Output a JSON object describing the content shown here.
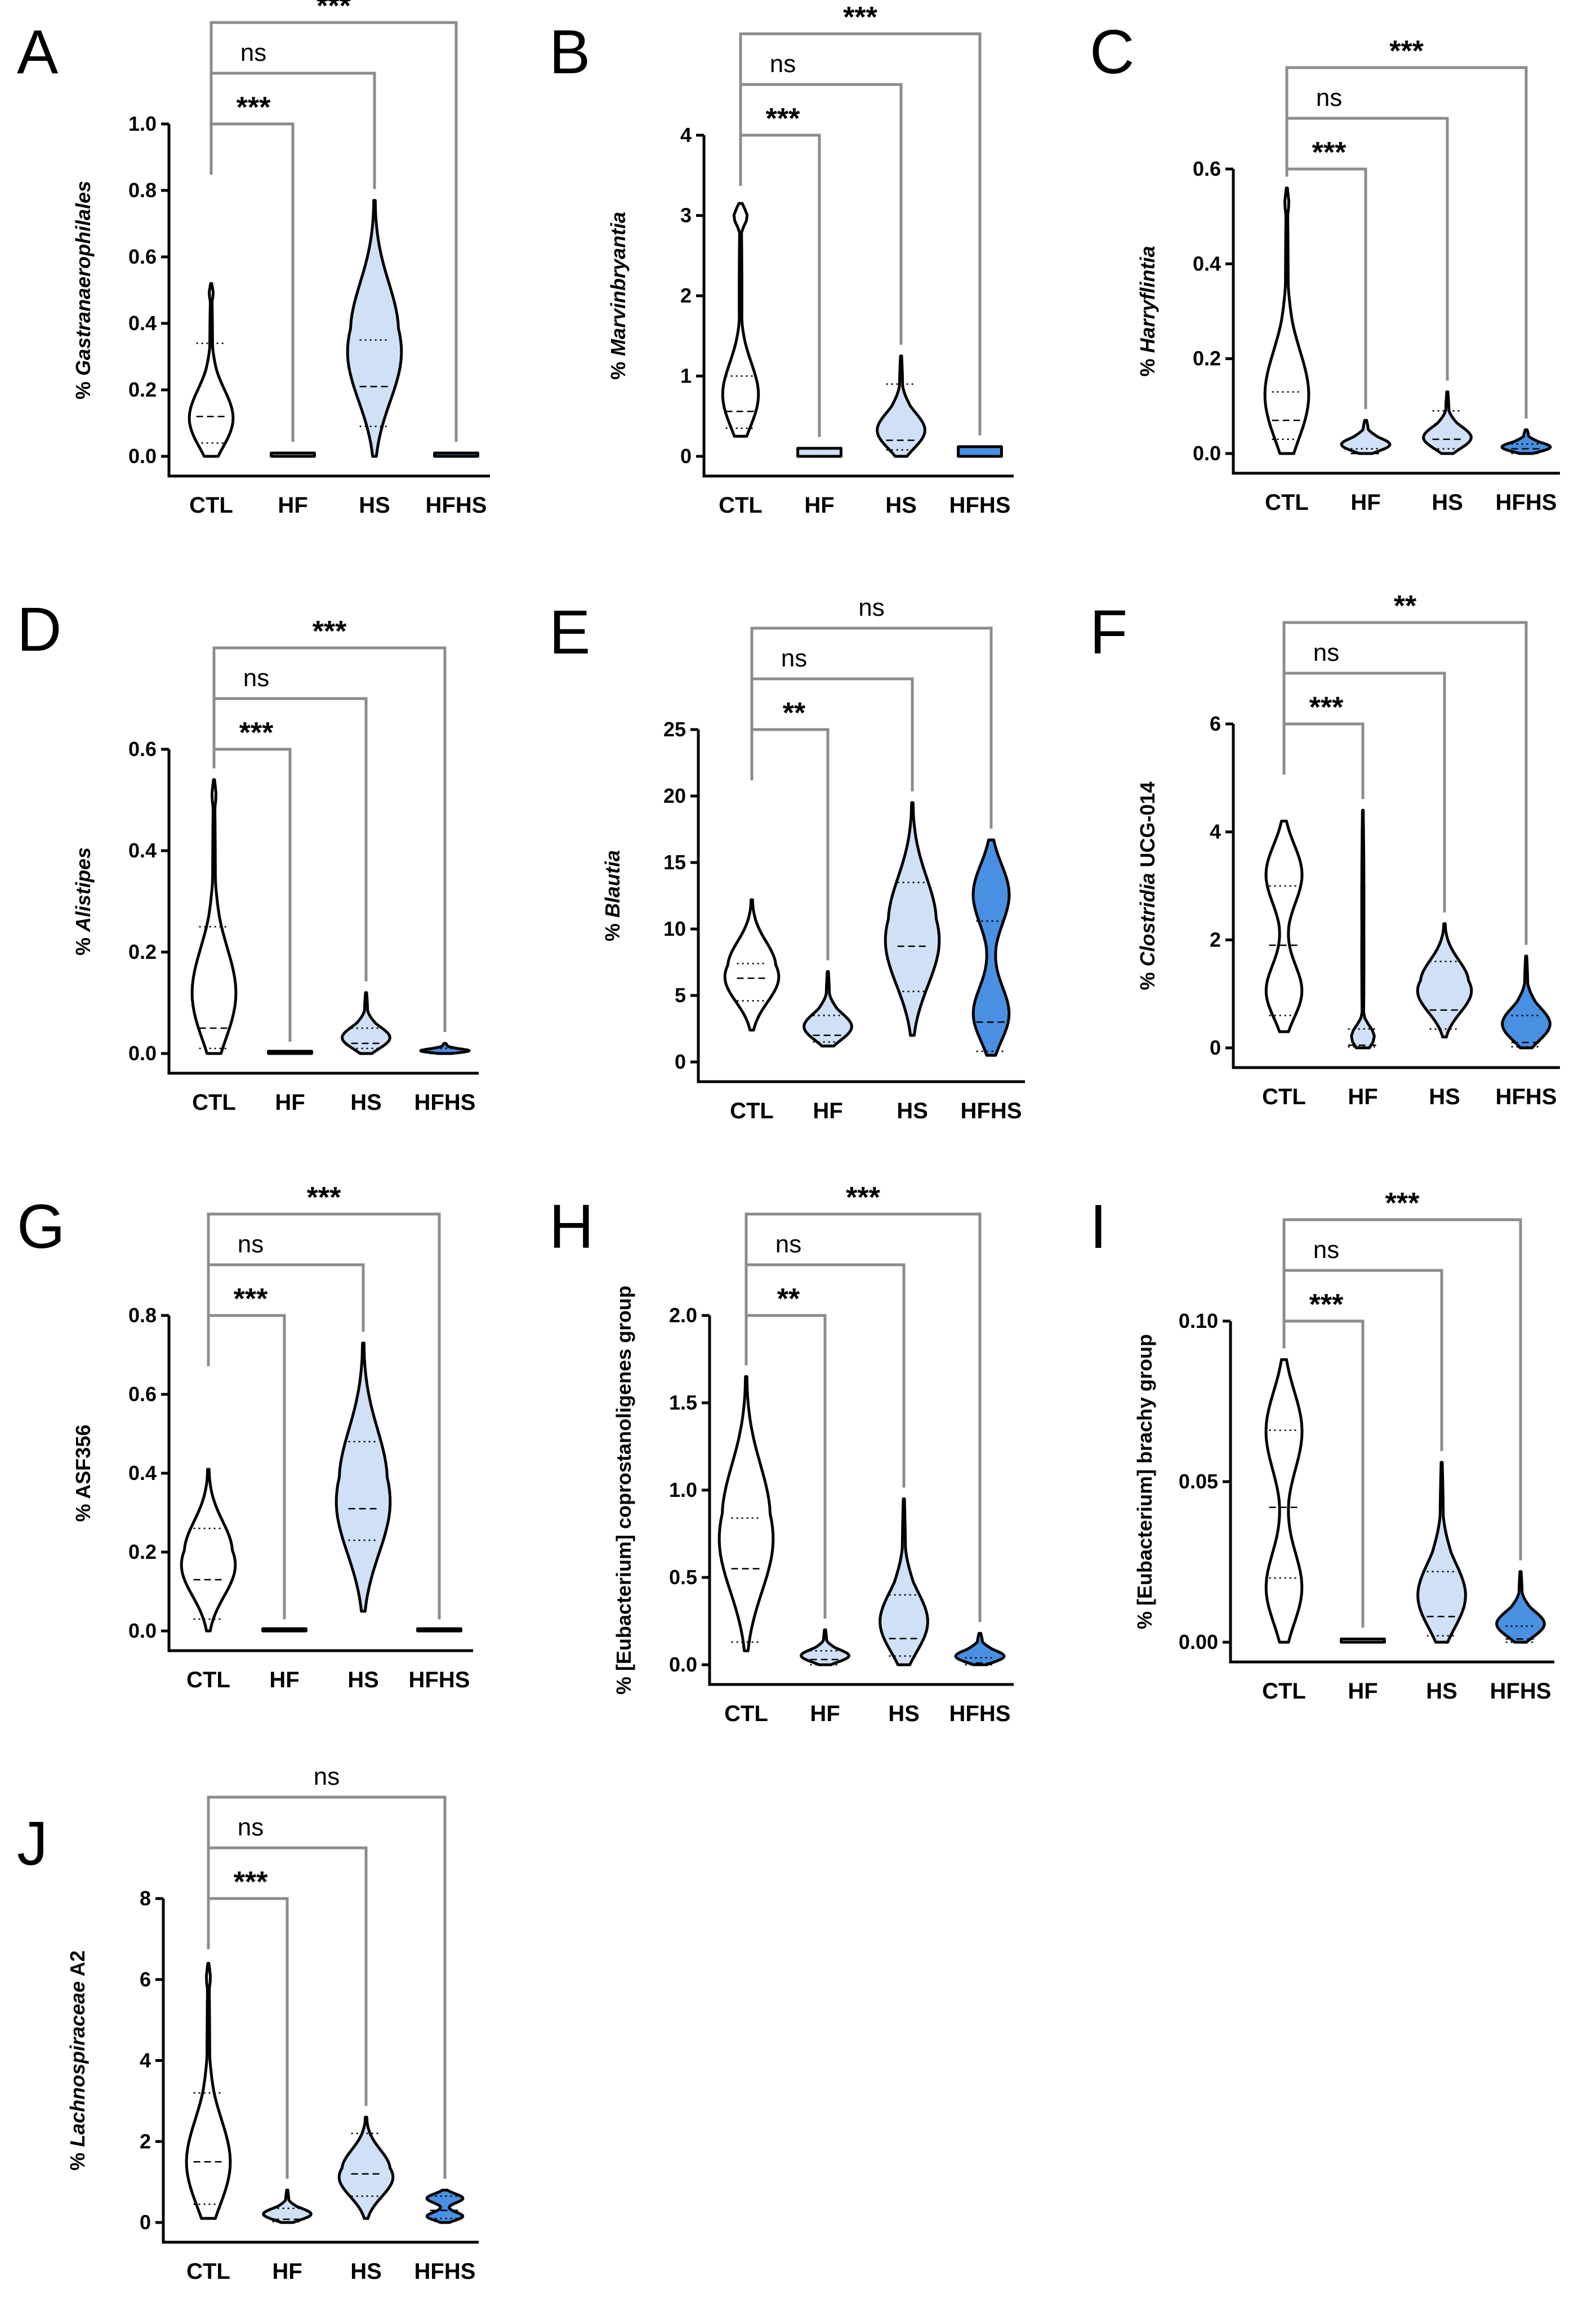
{
  "figure": {
    "groups": [
      "CTL",
      "HF",
      "HS",
      "HFHS"
    ],
    "group_colors": {
      "CTL": "#ffffff",
      "HF": "#cfe0f7",
      "HS": "#cfe0f7",
      "HFHS": "#4a90e2"
    }
  },
  "chart_data": [
    {
      "type": "violin",
      "panel": "A",
      "title": "",
      "ylabel_prefix": "% ",
      "ylabel_italic": "Gastranaerophilales",
      "ylabel_suffix": "",
      "ylim": [
        0,
        1.0
      ],
      "ticks": [
        "0.0",
        "0.2",
        "0.4",
        "0.6",
        "0.8",
        "1.0"
      ],
      "categories": [
        "CTL",
        "HF",
        "HS",
        "HFHS"
      ],
      "series": [
        {
          "group": "CTL",
          "min": 0.0,
          "max": 0.52,
          "q1": 0.04,
          "median": 0.12,
          "q3": 0.34,
          "shape": "wide-bottom"
        },
        {
          "group": "HF",
          "min": 0.0,
          "max": 0.01,
          "q1": 0.0,
          "median": 0.0,
          "q3": 0.0,
          "shape": "flat"
        },
        {
          "group": "HS",
          "min": 0.0,
          "max": 0.77,
          "q1": 0.09,
          "median": 0.21,
          "q3": 0.35,
          "shape": "mid-bulge"
        },
        {
          "group": "HFHS",
          "min": 0.0,
          "max": 0.01,
          "q1": 0.0,
          "median": 0.0,
          "q3": 0.0,
          "shape": "flat"
        }
      ],
      "comparisons": [
        {
          "pair": [
            "CTL",
            "HF"
          ],
          "label": "***"
        },
        {
          "pair": [
            "CTL",
            "HS"
          ],
          "label": "ns"
        },
        {
          "pair": [
            "CTL",
            "HFHS"
          ],
          "label": "***"
        }
      ]
    },
    {
      "type": "violin",
      "panel": "B",
      "title": "",
      "ylabel_prefix": "% ",
      "ylabel_italic": "Marvinbryantia",
      "ylabel_suffix": "",
      "ylim": [
        0,
        4
      ],
      "ticks": [
        "0",
        "1",
        "2",
        "3",
        "4"
      ],
      "categories": [
        "CTL",
        "HF",
        "HS",
        "HFHS"
      ],
      "series": [
        {
          "group": "CTL",
          "min": 0.25,
          "max": 3.15,
          "q1": 0.35,
          "median": 0.56,
          "q3": 1.0,
          "shape": "top-spike"
        },
        {
          "group": "HF",
          "min": 0.0,
          "max": 0.1,
          "q1": 0.02,
          "median": 0.05,
          "q3": 0.08,
          "shape": "flat"
        },
        {
          "group": "HS",
          "min": 0.0,
          "max": 1.25,
          "q1": 0.08,
          "median": 0.2,
          "q3": 0.9,
          "shape": "bottom-bulge"
        },
        {
          "group": "HFHS",
          "min": 0.0,
          "max": 0.12,
          "q1": 0.01,
          "median": 0.04,
          "q3": 0.08,
          "shape": "flat"
        }
      ],
      "comparisons": [
        {
          "pair": [
            "CTL",
            "HF"
          ],
          "label": "***"
        },
        {
          "pair": [
            "CTL",
            "HS"
          ],
          "label": "ns"
        },
        {
          "pair": [
            "CTL",
            "HFHS"
          ],
          "label": "***"
        }
      ]
    },
    {
      "type": "violin",
      "panel": "C",
      "title": "",
      "ylabel_prefix": "% ",
      "ylabel_italic": "Harryflintia",
      "ylabel_suffix": "",
      "ylim": [
        0,
        0.6
      ],
      "ticks": [
        "0.0",
        "0.2",
        "0.4",
        "0.6"
      ],
      "categories": [
        "CTL",
        "HF",
        "HS",
        "HFHS"
      ],
      "series": [
        {
          "group": "CTL",
          "min": 0.0,
          "max": 0.56,
          "q1": 0.03,
          "median": 0.07,
          "q3": 0.13,
          "shape": "wide-bottom"
        },
        {
          "group": "HF",
          "min": 0.0,
          "max": 0.07,
          "q1": 0.0,
          "median": 0.0,
          "q3": 0.01,
          "shape": "low-blob"
        },
        {
          "group": "HS",
          "min": 0.0,
          "max": 0.13,
          "q1": 0.01,
          "median": 0.03,
          "q3": 0.09,
          "shape": "bottom-bulge"
        },
        {
          "group": "HFHS",
          "min": 0.0,
          "max": 0.05,
          "q1": 0.0,
          "median": 0.01,
          "q3": 0.02,
          "shape": "low-blob"
        }
      ],
      "comparisons": [
        {
          "pair": [
            "CTL",
            "HF"
          ],
          "label": "***"
        },
        {
          "pair": [
            "CTL",
            "HS"
          ],
          "label": "ns"
        },
        {
          "pair": [
            "CTL",
            "HFHS"
          ],
          "label": "***"
        }
      ]
    },
    {
      "type": "violin",
      "panel": "D",
      "title": "",
      "ylabel_prefix": "% ",
      "ylabel_italic": "Alistipes",
      "ylabel_suffix": "",
      "ylim": [
        0,
        0.6
      ],
      "ticks": [
        "0.0",
        "0.2",
        "0.4",
        "0.6"
      ],
      "categories": [
        "CTL",
        "HF",
        "HS",
        "HFHS"
      ],
      "series": [
        {
          "group": "CTL",
          "min": 0.0,
          "max": 0.54,
          "q1": 0.01,
          "median": 0.05,
          "q3": 0.25,
          "shape": "wide-bottom"
        },
        {
          "group": "HF",
          "min": 0.0,
          "max": 0.001,
          "q1": 0.0,
          "median": 0.0,
          "q3": 0.0,
          "shape": "flat"
        },
        {
          "group": "HS",
          "min": 0.0,
          "max": 0.12,
          "q1": 0.01,
          "median": 0.02,
          "q3": 0.05,
          "shape": "bottom-bulge"
        },
        {
          "group": "HFHS",
          "min": 0.0,
          "max": 0.02,
          "q1": 0.0,
          "median": 0.0,
          "q3": 0.01,
          "shape": "low-blob"
        }
      ],
      "comparisons": [
        {
          "pair": [
            "CTL",
            "HF"
          ],
          "label": "***"
        },
        {
          "pair": [
            "CTL",
            "HS"
          ],
          "label": "ns"
        },
        {
          "pair": [
            "CTL",
            "HFHS"
          ],
          "label": "***"
        }
      ]
    },
    {
      "type": "violin",
      "panel": "E",
      "title": "",
      "ylabel_prefix": "% ",
      "ylabel_italic": "Blautia",
      "ylabel_suffix": "",
      "ylim": [
        0,
        25
      ],
      "ticks": [
        "0",
        "5",
        "10",
        "15",
        "20",
        "25"
      ],
      "categories": [
        "CTL",
        "HF",
        "HS",
        "HFHS"
      ],
      "series": [
        {
          "group": "CTL",
          "min": 2.4,
          "max": 12.2,
          "q1": 4.6,
          "median": 6.3,
          "q3": 7.4,
          "shape": "mid-bulge"
        },
        {
          "group": "HF",
          "min": 1.2,
          "max": 6.8,
          "q1": 1.5,
          "median": 2.0,
          "q3": 3.5,
          "shape": "bottom-bulge"
        },
        {
          "group": "HS",
          "min": 2.0,
          "max": 19.5,
          "q1": 5.3,
          "median": 8.7,
          "q3": 13.5,
          "shape": "mid-bulge"
        },
        {
          "group": "HFHS",
          "min": 0.5,
          "max": 16.7,
          "q1": 0.8,
          "median": 3.0,
          "q3": 10.6,
          "shape": "bimodal"
        }
      ],
      "comparisons": [
        {
          "pair": [
            "CTL",
            "HF"
          ],
          "label": "**"
        },
        {
          "pair": [
            "CTL",
            "HS"
          ],
          "label": "ns"
        },
        {
          "pair": [
            "CTL",
            "HFHS"
          ],
          "label": "ns"
        }
      ]
    },
    {
      "type": "violin",
      "panel": "F",
      "title": "",
      "ylabel_prefix": "% ",
      "ylabel_italic": "Clostridia",
      "ylabel_suffix": " UCG-014",
      "ylim": [
        0,
        6
      ],
      "ticks": [
        "0",
        "2",
        "4",
        "6"
      ],
      "categories": [
        "CTL",
        "HF",
        "HS",
        "HFHS"
      ],
      "series": [
        {
          "group": "CTL",
          "min": 0.3,
          "max": 4.2,
          "q1": 0.6,
          "median": 1.9,
          "q3": 3.0,
          "shape": "bimodal"
        },
        {
          "group": "HF",
          "min": 0.0,
          "max": 4.4,
          "q1": 0.02,
          "median": 0.05,
          "q3": 0.35,
          "shape": "needle"
        },
        {
          "group": "HS",
          "min": 0.2,
          "max": 2.3,
          "q1": 0.35,
          "median": 0.7,
          "q3": 1.6,
          "shape": "mid-bulge"
        },
        {
          "group": "HFHS",
          "min": 0.0,
          "max": 1.7,
          "q1": 0.02,
          "median": 0.1,
          "q3": 0.6,
          "shape": "bottom-bulge"
        }
      ],
      "comparisons": [
        {
          "pair": [
            "CTL",
            "HF"
          ],
          "label": "***"
        },
        {
          "pair": [
            "CTL",
            "HS"
          ],
          "label": "ns"
        },
        {
          "pair": [
            "CTL",
            "HFHS"
          ],
          "label": "**"
        }
      ]
    },
    {
      "type": "violin",
      "panel": "G",
      "title": "",
      "ylabel_prefix": "% ",
      "ylabel_italic": "",
      "ylabel_suffix": "ASF356",
      "ylim": [
        0,
        0.8
      ],
      "ticks": [
        "0.0",
        "0.2",
        "0.4",
        "0.6",
        "0.8"
      ],
      "categories": [
        "CTL",
        "HF",
        "HS",
        "HFHS"
      ],
      "series": [
        {
          "group": "CTL",
          "min": 0.0,
          "max": 0.41,
          "q1": 0.03,
          "median": 0.13,
          "q3": 0.26,
          "shape": "mid-bulge"
        },
        {
          "group": "HF",
          "min": 0.0,
          "max": 0.001,
          "q1": 0.0,
          "median": 0.0,
          "q3": 0.0,
          "shape": "flat"
        },
        {
          "group": "HS",
          "min": 0.05,
          "max": 0.73,
          "q1": 0.23,
          "median": 0.31,
          "q3": 0.48,
          "shape": "mid-bulge"
        },
        {
          "group": "HFHS",
          "min": 0.0,
          "max": 0.001,
          "q1": 0.0,
          "median": 0.0,
          "q3": 0.0,
          "shape": "flat"
        }
      ],
      "comparisons": [
        {
          "pair": [
            "CTL",
            "HF"
          ],
          "label": "***"
        },
        {
          "pair": [
            "CTL",
            "HS"
          ],
          "label": "ns"
        },
        {
          "pair": [
            "CTL",
            "HFHS"
          ],
          "label": "***"
        }
      ]
    },
    {
      "type": "violin",
      "panel": "H",
      "title": "",
      "ylabel_prefix": "% ",
      "ylabel_italic": "",
      "ylabel_suffix": "[Eubacterium] coprostanoligenes group",
      "ylim": [
        0,
        2.0
      ],
      "ticks": [
        "0.0",
        "0.5",
        "1.0",
        "1.5",
        "2.0"
      ],
      "categories": [
        "CTL",
        "HF",
        "HS",
        "HFHS"
      ],
      "series": [
        {
          "group": "CTL",
          "min": 0.08,
          "max": 1.65,
          "q1": 0.13,
          "median": 0.55,
          "q3": 0.84,
          "shape": "mid-bulge"
        },
        {
          "group": "HF",
          "min": 0.0,
          "max": 0.2,
          "q1": 0.0,
          "median": 0.03,
          "q3": 0.08,
          "shape": "bottom-bulge"
        },
        {
          "group": "HS",
          "min": 0.0,
          "max": 0.95,
          "q1": 0.05,
          "median": 0.15,
          "q3": 0.4,
          "shape": "bottom-bulge"
        },
        {
          "group": "HFHS",
          "min": 0.0,
          "max": 0.18,
          "q1": 0.0,
          "median": 0.01,
          "q3": 0.04,
          "shape": "low-blob"
        }
      ],
      "comparisons": [
        {
          "pair": [
            "CTL",
            "HF"
          ],
          "label": "**"
        },
        {
          "pair": [
            "CTL",
            "HS"
          ],
          "label": "ns"
        },
        {
          "pair": [
            "CTL",
            "HFHS"
          ],
          "label": "***"
        }
      ]
    },
    {
      "type": "violin",
      "panel": "I",
      "title": "",
      "ylabel_prefix": "% ",
      "ylabel_italic": "",
      "ylabel_suffix": "[Eubacterium] brachy group",
      "ylim": [
        0,
        0.1
      ],
      "ticks": [
        "0.00",
        "0.05",
        "0.10"
      ],
      "categories": [
        "CTL",
        "HF",
        "HS",
        "HFHS"
      ],
      "series": [
        {
          "group": "CTL",
          "min": 0.0,
          "max": 0.088,
          "q1": 0.02,
          "median": 0.042,
          "q3": 0.066,
          "shape": "bimodal"
        },
        {
          "group": "HF",
          "min": 0.0,
          "max": 0.001,
          "q1": 0.0,
          "median": 0.0,
          "q3": 0.0,
          "shape": "flat"
        },
        {
          "group": "HS",
          "min": 0.0,
          "max": 0.056,
          "q1": 0.002,
          "median": 0.008,
          "q3": 0.022,
          "shape": "bottom-bulge"
        },
        {
          "group": "HFHS",
          "min": 0.0,
          "max": 0.022,
          "q1": 0.0,
          "median": 0.001,
          "q3": 0.005,
          "shape": "bottom-bulge"
        }
      ],
      "comparisons": [
        {
          "pair": [
            "CTL",
            "HF"
          ],
          "label": "***"
        },
        {
          "pair": [
            "CTL",
            "HS"
          ],
          "label": "ns"
        },
        {
          "pair": [
            "CTL",
            "HFHS"
          ],
          "label": "***"
        }
      ]
    },
    {
      "type": "violin",
      "panel": "J",
      "title": "",
      "ylabel_prefix": "% ",
      "ylabel_italic": "Lachnospiraceae",
      "ylabel_suffix": " A2",
      "ylim": [
        0,
        8
      ],
      "ticks": [
        "0",
        "2",
        "4",
        "6",
        "8"
      ],
      "categories": [
        "CTL",
        "HF",
        "HS",
        "HFHS"
      ],
      "series": [
        {
          "group": "CTL",
          "min": 0.1,
          "max": 6.4,
          "q1": 0.45,
          "median": 1.5,
          "q3": 3.2,
          "shape": "wide-bottom"
        },
        {
          "group": "HF",
          "min": 0.0,
          "max": 0.8,
          "q1": 0.02,
          "median": 0.08,
          "q3": 0.35,
          "shape": "bottom-bulge"
        },
        {
          "group": "HS",
          "min": 0.1,
          "max": 2.6,
          "q1": 0.65,
          "median": 1.2,
          "q3": 2.2,
          "shape": "mid-bulge"
        },
        {
          "group": "HFHS",
          "min": 0.0,
          "max": 0.8,
          "q1": 0.1,
          "median": 0.3,
          "q3": 0.65,
          "shape": "bimodal"
        }
      ],
      "comparisons": [
        {
          "pair": [
            "CTL",
            "HF"
          ],
          "label": "***"
        },
        {
          "pair": [
            "CTL",
            "HS"
          ],
          "label": "ns"
        },
        {
          "pair": [
            "CTL",
            "HFHS"
          ],
          "label": "ns"
        }
      ]
    }
  ]
}
